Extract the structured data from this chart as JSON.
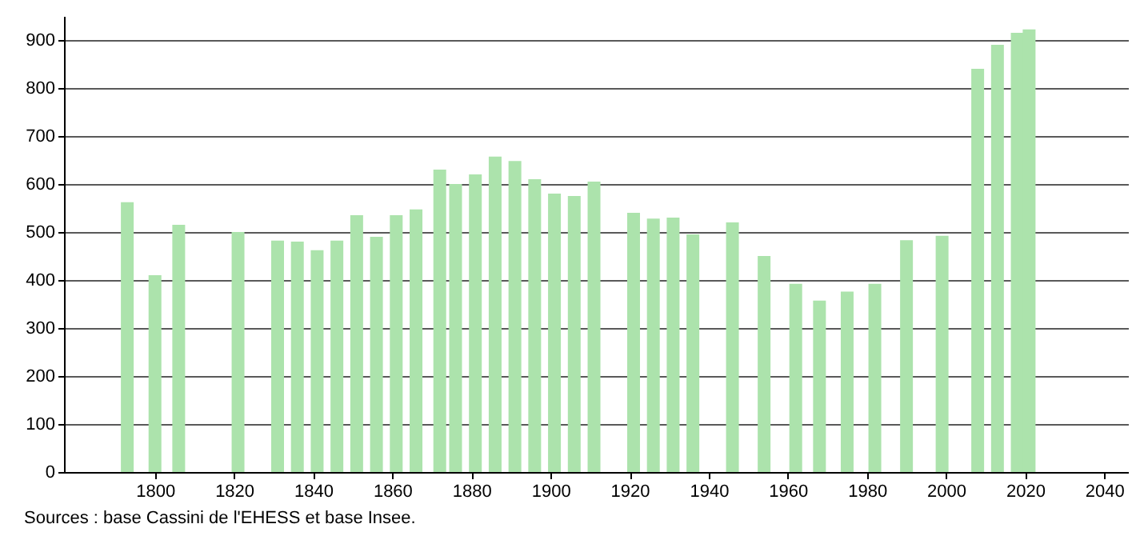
{
  "chart_data": {
    "type": "bar",
    "x": [
      1793,
      1800,
      1806,
      1821,
      1831,
      1836,
      1841,
      1846,
      1851,
      1856,
      1861,
      1866,
      1872,
      1876,
      1881,
      1886,
      1891,
      1896,
      1901,
      1906,
      1911,
      1921,
      1926,
      1931,
      1936,
      1946,
      1954,
      1962,
      1968,
      1975,
      1982,
      1990,
      1999,
      2008,
      2013,
      2018,
      2021
    ],
    "values": [
      562,
      410,
      515,
      500,
      482,
      480,
      462,
      482,
      535,
      490,
      535,
      547,
      630,
      600,
      620,
      657,
      648,
      610,
      580,
      575,
      605,
      540,
      528,
      530,
      495,
      520,
      450,
      392,
      357,
      376,
      392,
      483,
      492,
      840,
      890,
      915,
      922
    ],
    "color": "#ace3ac",
    "xlim": [
      1777,
      2046
    ],
    "xticks": [
      1800,
      1820,
      1840,
      1860,
      1880,
      1900,
      1920,
      1940,
      1960,
      1980,
      2000,
      2020,
      2040
    ],
    "ylim": [
      0,
      950
    ],
    "yticks": [
      0,
      100,
      200,
      300,
      400,
      500,
      600,
      700,
      800,
      900
    ],
    "grid": "y",
    "annotations": [
      "Sources : base Cassini de l'EHESS et base Insee."
    ]
  }
}
